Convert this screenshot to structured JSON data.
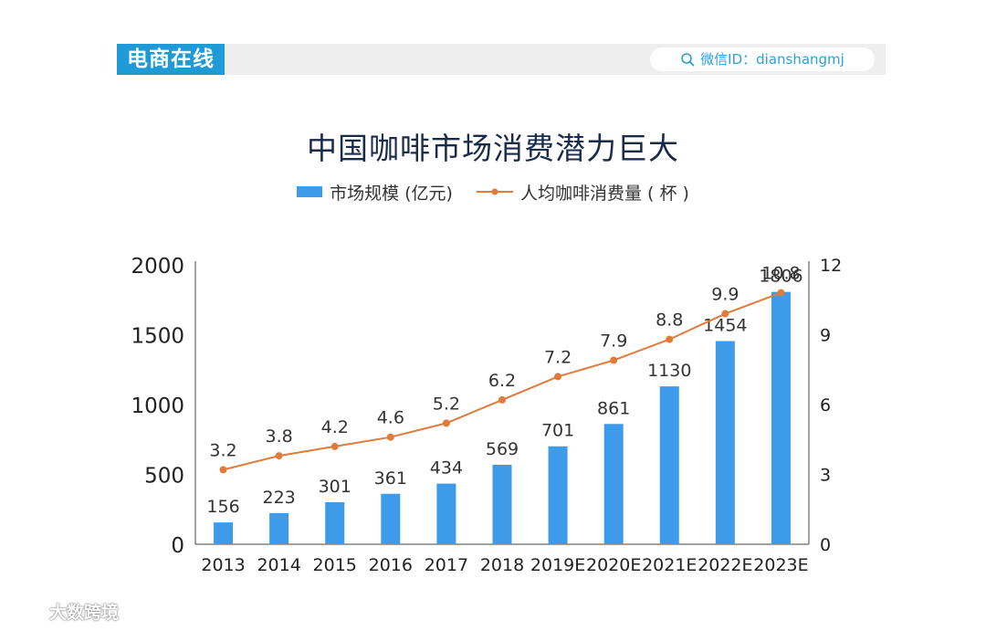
{
  "header": {
    "brand": "电商在线",
    "wechat_label": "微信ID：dianshangmj"
  },
  "footer": {
    "watermark": "大数跨境"
  },
  "colors": {
    "bar": "#3d9be9",
    "line": "#e07b39",
    "brand": "#1e9ad6"
  },
  "chart_data": {
    "type": "bar",
    "title": "中国咖啡市场消费潜力巨大",
    "categories": [
      "2013",
      "2014",
      "2015",
      "2016",
      "2017",
      "2018",
      "2019E",
      "2020E",
      "2021E",
      "2022E",
      "2023E"
    ],
    "series": [
      {
        "name": "市场规模 (亿元)",
        "type": "bar",
        "axis": "left",
        "values": [
          156,
          223,
          301,
          361,
          434,
          569,
          701,
          861,
          1130,
          1454,
          1806
        ]
      },
      {
        "name": "人均咖啡消费量 ( 杯 )",
        "type": "line",
        "axis": "right",
        "values": [
          3.2,
          3.8,
          4.2,
          4.6,
          5.2,
          6.2,
          7.2,
          7.9,
          8.8,
          9.9,
          10.8
        ]
      }
    ],
    "ylim": [
      0,
      2000
    ],
    "yticks": [
      "0",
      "500",
      "1000",
      "1500",
      "2000"
    ],
    "y2lim": [
      0,
      12
    ],
    "y2ticks": [
      "0",
      "3",
      "6",
      "9",
      "12"
    ],
    "legend": "top-center",
    "grid": false
  }
}
